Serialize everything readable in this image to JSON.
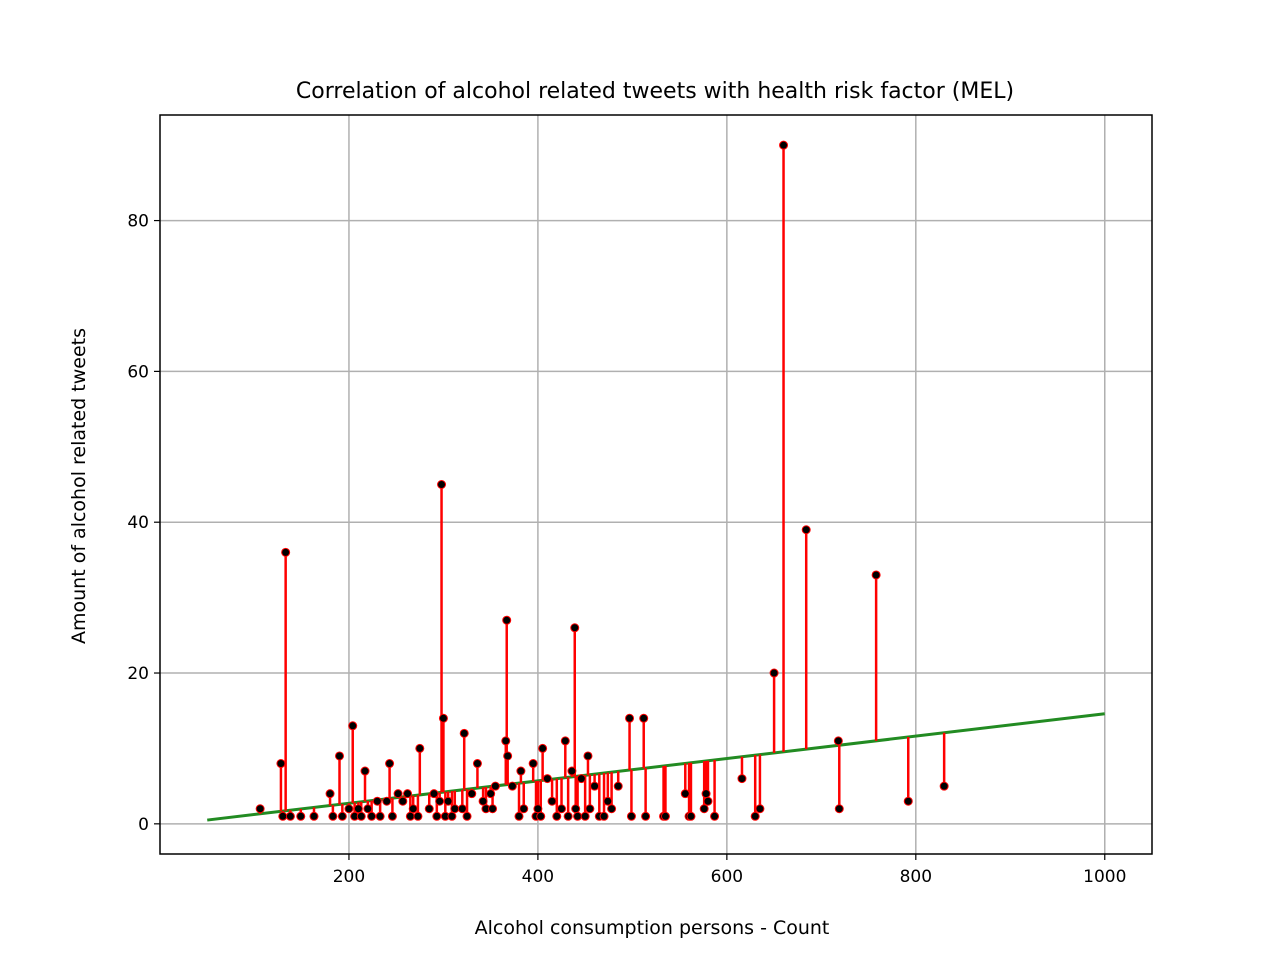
{
  "chart_data": {
    "type": "scatter",
    "title": "Correlation of alcohol related tweets with health risk factor (MEL)",
    "xlabel": "Alcohol consumption persons - Count",
    "ylabel": "Amount of alcohol related tweets",
    "xlim": [
      0,
      1050
    ],
    "ylim": [
      -4,
      94
    ],
    "xticks": [
      200,
      400,
      600,
      800,
      1000
    ],
    "yticks": [
      0,
      20,
      40,
      60,
      80
    ],
    "grid": true,
    "colors": {
      "points": "#000000",
      "residuals": "#ff0000",
      "fit_line": "#228b22",
      "grid": "#b0b0b0"
    },
    "fit_line": {
      "x": [
        50,
        1000
      ],
      "y": [
        0.5,
        14.6
      ]
    },
    "points": [
      [
        106,
        2
      ],
      [
        128,
        8
      ],
      [
        130,
        1
      ],
      [
        133,
        36
      ],
      [
        138,
        1
      ],
      [
        149,
        1
      ],
      [
        163,
        1
      ],
      [
        180,
        4
      ],
      [
        183,
        1
      ],
      [
        190,
        9
      ],
      [
        193,
        1
      ],
      [
        200,
        2
      ],
      [
        204,
        13
      ],
      [
        206,
        1
      ],
      [
        210,
        2
      ],
      [
        213,
        1
      ],
      [
        217,
        7
      ],
      [
        220,
        2
      ],
      [
        224,
        1
      ],
      [
        230,
        3
      ],
      [
        233,
        1
      ],
      [
        240,
        3
      ],
      [
        243,
        8
      ],
      [
        246,
        1
      ],
      [
        252,
        4
      ],
      [
        257,
        3
      ],
      [
        262,
        4
      ],
      [
        265,
        1
      ],
      [
        268,
        2
      ],
      [
        273,
        1
      ],
      [
        275,
        10
      ],
      [
        285,
        2
      ],
      [
        290,
        4
      ],
      [
        293,
        1
      ],
      [
        296,
        3
      ],
      [
        298,
        45
      ],
      [
        300,
        14
      ],
      [
        302,
        1
      ],
      [
        305,
        3
      ],
      [
        309,
        1
      ],
      [
        312,
        2
      ],
      [
        320,
        2
      ],
      [
        322,
        12
      ],
      [
        325,
        1
      ],
      [
        330,
        4
      ],
      [
        336,
        8
      ],
      [
        342,
        3
      ],
      [
        345,
        2
      ],
      [
        350,
        4
      ],
      [
        352,
        2
      ],
      [
        355,
        5
      ],
      [
        366,
        11
      ],
      [
        367,
        27
      ],
      [
        368,
        9
      ],
      [
        373,
        5
      ],
      [
        380,
        1
      ],
      [
        382,
        7
      ],
      [
        385,
        2
      ],
      [
        395,
        8
      ],
      [
        398,
        1
      ],
      [
        400,
        2
      ],
      [
        403,
        1
      ],
      [
        405,
        10
      ],
      [
        410,
        6
      ],
      [
        415,
        3
      ],
      [
        420,
        1
      ],
      [
        425,
        2
      ],
      [
        429,
        11
      ],
      [
        432,
        1
      ],
      [
        436,
        7
      ],
      [
        439,
        26
      ],
      [
        440,
        2
      ],
      [
        442,
        1
      ],
      [
        446,
        6
      ],
      [
        450,
        1
      ],
      [
        453,
        9
      ],
      [
        455,
        2
      ],
      [
        460,
        5
      ],
      [
        465,
        1
      ],
      [
        470,
        1
      ],
      [
        474,
        3
      ],
      [
        478,
        2
      ],
      [
        485,
        5
      ],
      [
        497,
        14
      ],
      [
        499,
        1
      ],
      [
        512,
        14
      ],
      [
        514,
        1
      ],
      [
        533,
        1
      ],
      [
        535,
        1
      ],
      [
        556,
        4
      ],
      [
        560,
        1
      ],
      [
        562,
        1
      ],
      [
        576,
        2
      ],
      [
        578,
        4
      ],
      [
        580,
        3
      ],
      [
        587,
        1
      ],
      [
        616,
        6
      ],
      [
        630,
        1
      ],
      [
        635,
        2
      ],
      [
        650,
        20
      ],
      [
        660,
        90
      ],
      [
        684,
        39
      ],
      [
        718,
        11
      ],
      [
        719,
        2
      ],
      [
        758,
        33
      ],
      [
        792,
        3
      ],
      [
        830,
        5
      ]
    ]
  }
}
